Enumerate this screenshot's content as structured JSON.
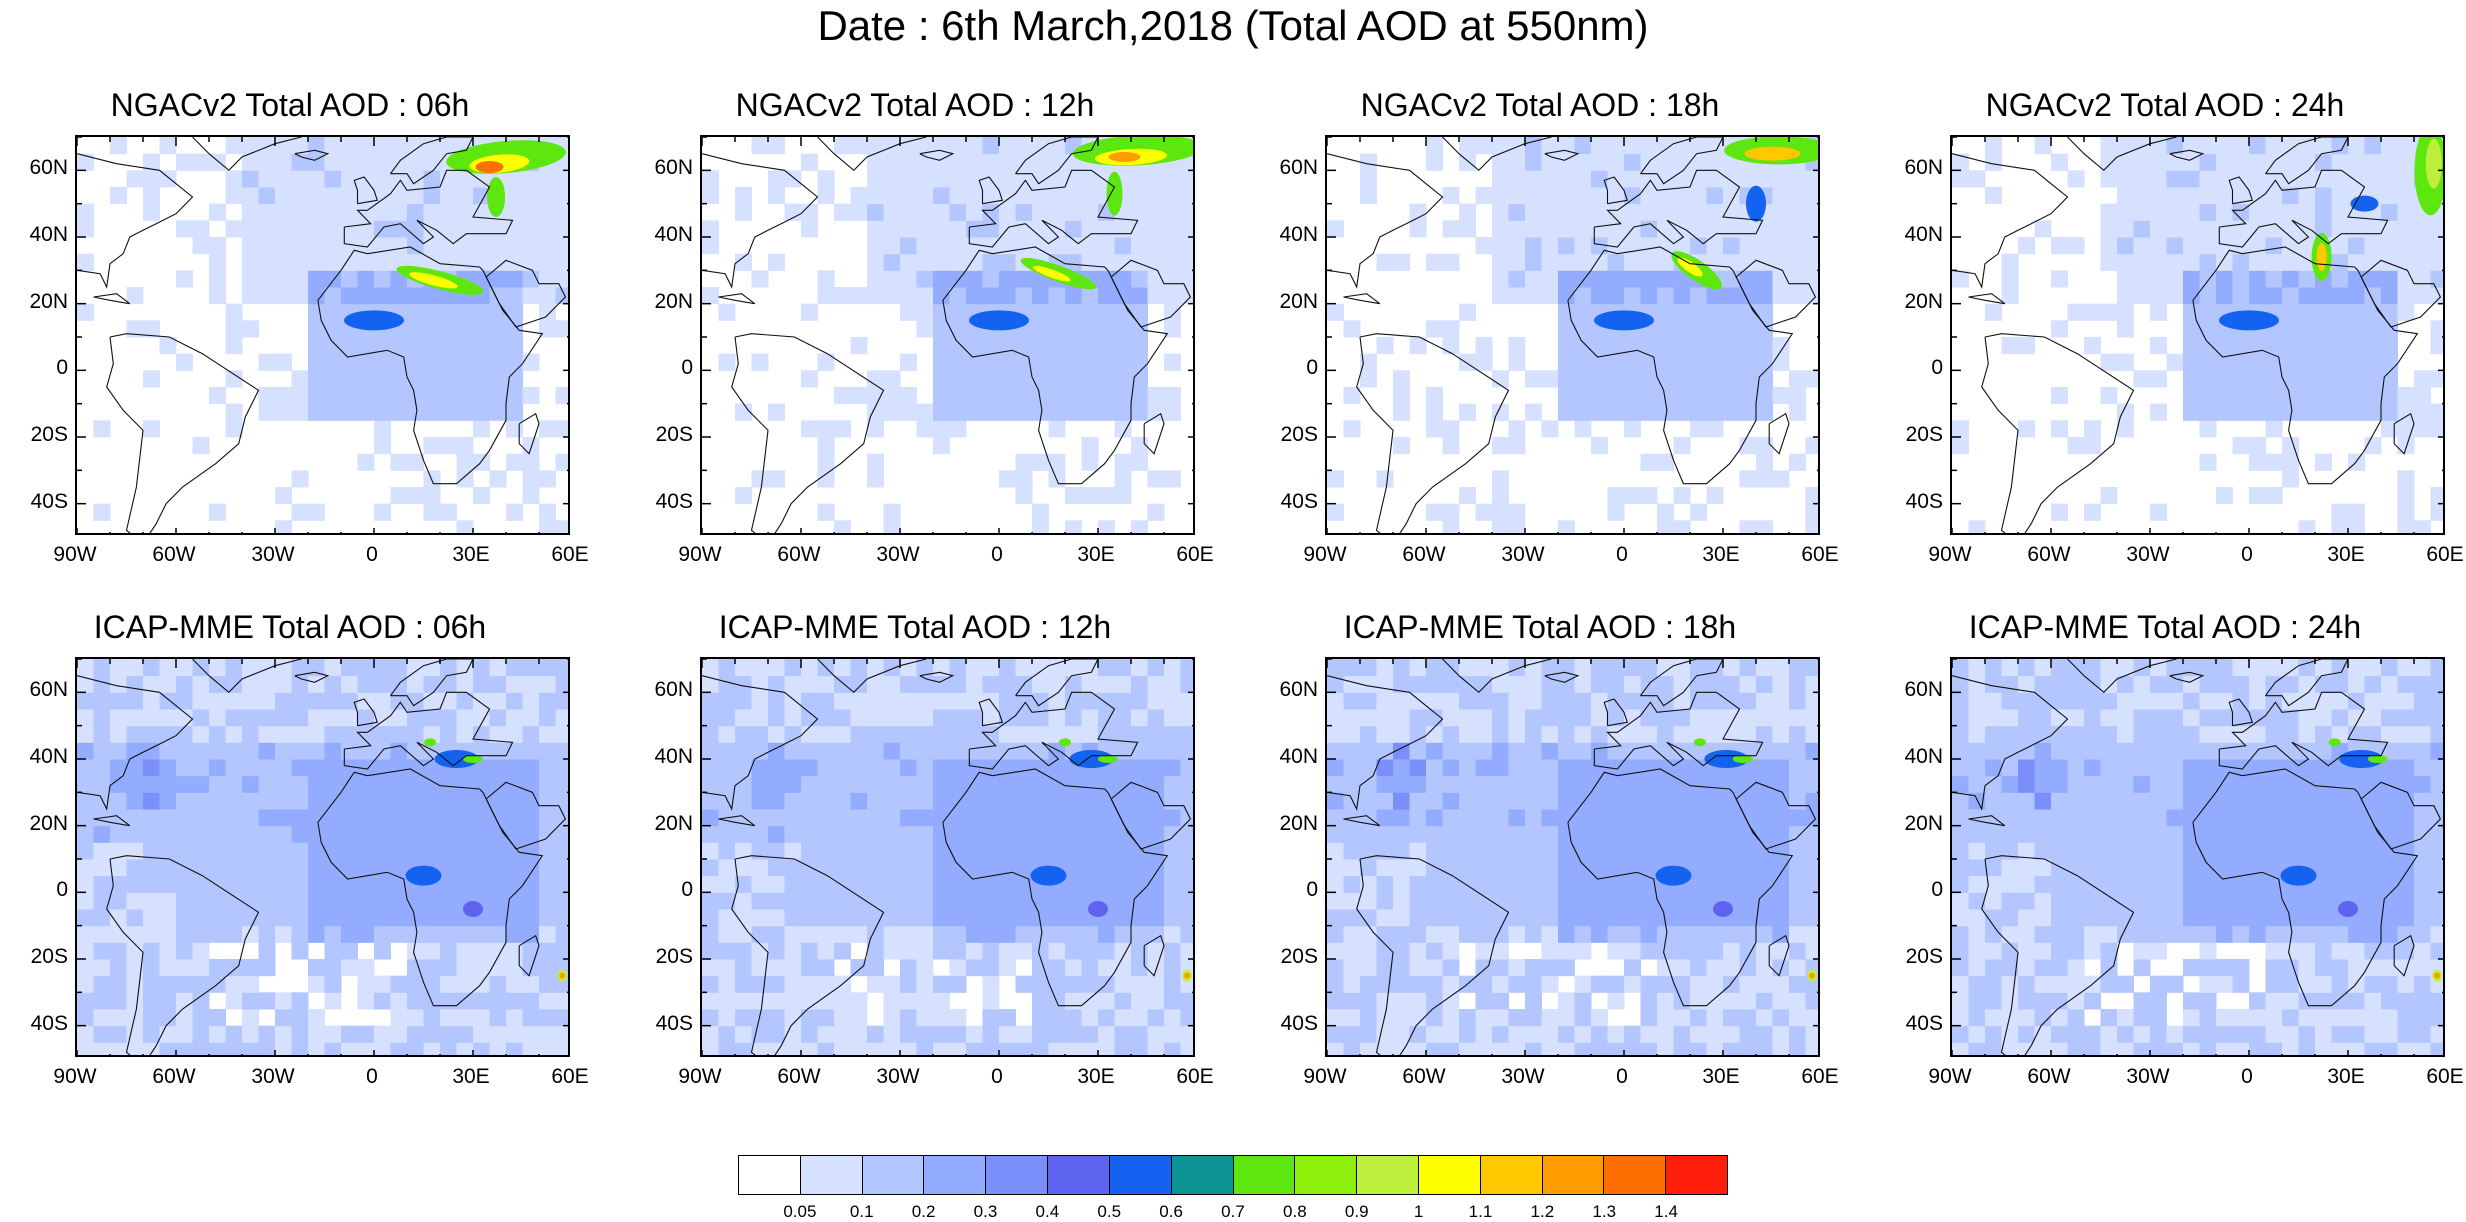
{
  "figure": {
    "title": "Date : 6th March,2018 (Total AOD at 550nm)"
  },
  "panels": [
    {
      "title": "NGACv2 Total AOD : 06h",
      "model": "ngac",
      "hour": 6
    },
    {
      "title": "NGACv2 Total AOD : 12h",
      "model": "ngac",
      "hour": 12
    },
    {
      "title": "NGACv2 Total AOD : 18h",
      "model": "ngac",
      "hour": 18
    },
    {
      "title": "NGACv2 Total AOD : 24h",
      "model": "ngac",
      "hour": 24
    },
    {
      "title": "ICAP-MME Total AOD : 06h",
      "model": "icap",
      "hour": 6
    },
    {
      "title": "ICAP-MME Total AOD : 12h",
      "model": "icap",
      "hour": 12
    },
    {
      "title": "ICAP-MME Total AOD : 18h",
      "model": "icap",
      "hour": 18
    },
    {
      "title": "ICAP-MME Total AOD : 24h",
      "model": "icap",
      "hour": 24
    }
  ],
  "map": {
    "lon_range": [
      -90,
      60
    ],
    "lat_range": [
      -50,
      70
    ],
    "lat_ticks": [
      "60N",
      "40N",
      "20N",
      "0",
      "20S",
      "40S"
    ],
    "lat_tick_values": [
      60,
      40,
      20,
      0,
      -20,
      -40
    ],
    "lon_ticks": [
      "90W",
      "60W",
      "30W",
      "0",
      "30E",
      "60E"
    ],
    "lon_tick_values": [
      -90,
      -60,
      -30,
      0,
      30,
      60
    ]
  },
  "colorbar": {
    "colors": [
      "#ffffff",
      "#d6e0ff",
      "#b4c6ff",
      "#93acff",
      "#7b8ffa",
      "#5f64f0",
      "#1463f0",
      "#0c9393",
      "#5ee60f",
      "#8cf00a",
      "#beef3c",
      "#ffff00",
      "#ffc800",
      "#ff9c00",
      "#ff6e00",
      "#ff1e0a"
    ],
    "labels": [
      "0.05",
      "0.1",
      "0.2",
      "0.3",
      "0.4",
      "0.5",
      "0.6",
      "0.7",
      "0.8",
      "0.9",
      "1",
      "1.1",
      "1.2",
      "1.3",
      "1.4"
    ]
  }
}
